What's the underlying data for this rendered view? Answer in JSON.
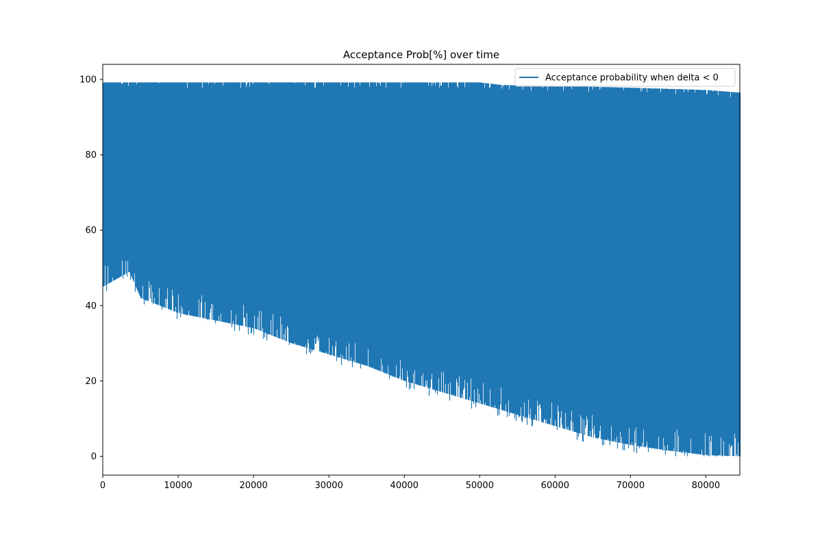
{
  "chart_data": {
    "type": "line",
    "title": "Acceptance Prob[%] over time",
    "xlabel": "",
    "ylabel": "",
    "xlim": [
      0,
      84500
    ],
    "ylim": [
      -5,
      104
    ],
    "x_ticks": [
      0,
      10000,
      20000,
      30000,
      40000,
      50000,
      60000,
      70000,
      80000
    ],
    "x_tick_labels": [
      "0",
      "10000",
      "20000",
      "30000",
      "40000",
      "50000",
      "60000",
      "70000",
      "80000"
    ],
    "y_ticks": [
      0,
      20,
      40,
      60,
      80,
      100
    ],
    "y_tick_labels": [
      "0",
      "20",
      "40",
      "60",
      "80",
      "100"
    ],
    "grid": false,
    "legend_position": "top-right",
    "series": [
      {
        "name": "Acceptance probability when delta < 0",
        "color": "#1f77b4",
        "upper_envelope": {
          "x": [
            0,
            10000,
            20000,
            30000,
            40000,
            50000,
            53000,
            60000,
            70000,
            80000,
            84500
          ],
          "y": [
            99.2,
            99.2,
            99.2,
            99.2,
            99.2,
            99.2,
            98.5,
            98.3,
            97.8,
            97.2,
            96.5
          ]
        },
        "lower_envelope": {
          "x": [
            0,
            3500,
            5000,
            10000,
            15000,
            20000,
            25000,
            30000,
            35000,
            40000,
            45000,
            50000,
            55000,
            60000,
            65000,
            70000,
            75000,
            80000,
            84500
          ],
          "y": [
            45,
            49,
            42,
            38,
            36,
            34,
            30,
            27,
            24,
            20,
            17,
            14,
            11,
            8,
            5,
            3,
            1.5,
            0.3,
            0
          ]
        }
      }
    ]
  }
}
